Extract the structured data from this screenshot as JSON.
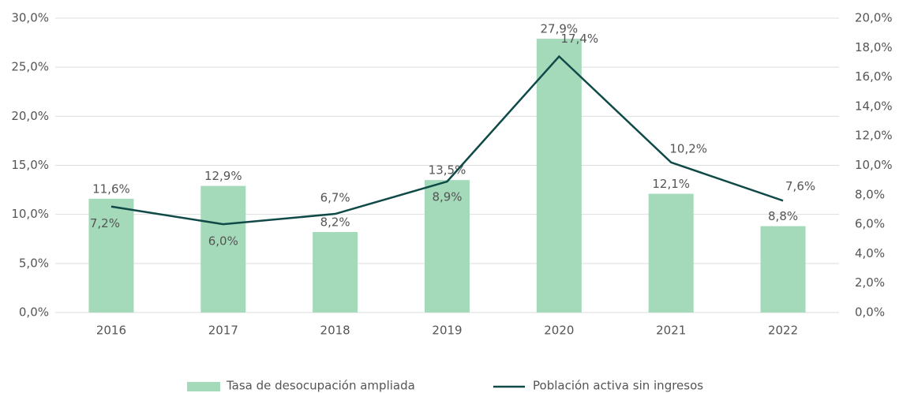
{
  "chart_data": {
    "type": "bar",
    "categories": [
      "2016",
      "2017",
      "2018",
      "2019",
      "2020",
      "2021",
      "2022"
    ],
    "series": [
      {
        "name": "Tasa de desocupación ampliada",
        "type": "bar",
        "color": "#a4d9b9",
        "values": [
          11.6,
          12.9,
          8.2,
          13.5,
          27.9,
          12.1,
          8.8
        ],
        "value_labels": [
          "11,6%",
          "12,9%",
          "8,2%",
          "13,5%",
          "27,9%",
          "12,1%",
          "8,8%"
        ]
      },
      {
        "name": "Población activa sin ingresos",
        "type": "line",
        "color": "#0f4a48",
        "axis": "y2",
        "values": [
          7.2,
          6.0,
          6.7,
          8.9,
          17.4,
          10.2,
          7.6
        ],
        "value_labels": [
          "7,2%",
          "6,0%",
          "6,7%",
          "8,9%",
          "17,4%",
          "10,2%",
          "7,6%"
        ]
      }
    ],
    "ylim": [
      0,
      30
    ],
    "yticks": [
      {
        "value": 0,
        "label": "0,0%"
      },
      {
        "value": 5,
        "label": "5,0%"
      },
      {
        "value": 10,
        "label": "10,0%"
      },
      {
        "value": 15,
        "label": "15,0%"
      },
      {
        "value": 20,
        "label": "20,0%"
      },
      {
        "value": 25,
        "label": "25,0%"
      },
      {
        "value": 30,
        "label": "30,0%"
      }
    ],
    "y2lim": [
      0,
      20
    ],
    "y2ticks": [
      {
        "value": 0,
        "label": "0,0%"
      },
      {
        "value": 2,
        "label": "2,0%"
      },
      {
        "value": 4,
        "label": "4,0%"
      },
      {
        "value": 6,
        "label": "6,0%"
      },
      {
        "value": 8,
        "label": "8,0%"
      },
      {
        "value": 10,
        "label": "10,0%"
      },
      {
        "value": 12,
        "label": "12,0%"
      },
      {
        "value": 14,
        "label": "14,0%"
      },
      {
        "value": 16,
        "label": "16,0%"
      },
      {
        "value": 18,
        "label": "18,0%"
      },
      {
        "value": 20,
        "label": "20,0%"
      }
    ],
    "grid": true,
    "legend": "bottom"
  }
}
